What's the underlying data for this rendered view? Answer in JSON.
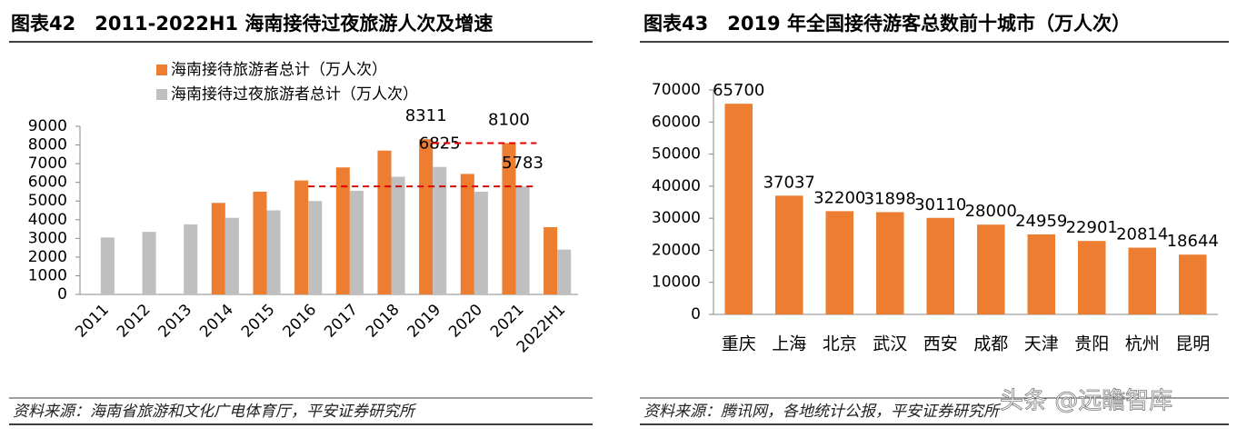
{
  "chart_data": [
    {
      "type": "bar",
      "title": "图表42　2011-2022H1 海南接待过夜旅游人次及增速",
      "source": "资料来源：海南省旅游和文化广电体育厅，平安证券研究所",
      "categories": [
        "2011",
        "2012",
        "2013",
        "2014",
        "2015",
        "2016",
        "2017",
        "2018",
        "2019",
        "2020",
        "2021",
        "2022H1"
      ],
      "series": [
        {
          "name": "海南接待旅游者总计（万人次）",
          "color": "#ed7d31",
          "values": [
            null,
            null,
            null,
            4900,
            5500,
            6100,
            6800,
            7700,
            8311,
            6450,
            8100,
            3600
          ],
          "data_labels": [
            8,
            10
          ]
        },
        {
          "name": "海南接待过夜旅游者总计（万人次）",
          "color": "#bfbfbf",
          "values": [
            3050,
            3350,
            3750,
            4100,
            4500,
            5000,
            5550,
            6300,
            6825,
            5500,
            5783,
            2400
          ],
          "data_labels": [
            8,
            10
          ]
        }
      ],
      "reference_lines": [
        {
          "series": 0,
          "index": 10,
          "from": 8
        },
        {
          "series": 1,
          "index": 10,
          "from": 5
        }
      ],
      "reference_color": "#e00000",
      "ylim": [
        0,
        9000
      ],
      "yticks": [
        0,
        1000,
        2000,
        3000,
        4000,
        5000,
        6000,
        7000,
        8000,
        9000
      ]
    },
    {
      "type": "bar",
      "title": "图表43　2019 年全国接待游客总数前十城市（万人次）",
      "source": "资料来源：腾讯网，各地统计公报，平安证券研究所",
      "categories": [
        "重庆",
        "上海",
        "北京",
        "武汉",
        "西安",
        "成都",
        "天津",
        "贵阳",
        "杭州",
        "昆明"
      ],
      "values": [
        65700,
        37037,
        32200,
        31898,
        30110,
        28000,
        24959,
        22901,
        20814,
        18644
      ],
      "color": "#ed7d31",
      "ylim": [
        0,
        70000
      ],
      "yticks": [
        0,
        10000,
        20000,
        30000,
        40000,
        50000,
        60000,
        70000
      ]
    }
  ],
  "watermark": "头条 @远瞻智库"
}
